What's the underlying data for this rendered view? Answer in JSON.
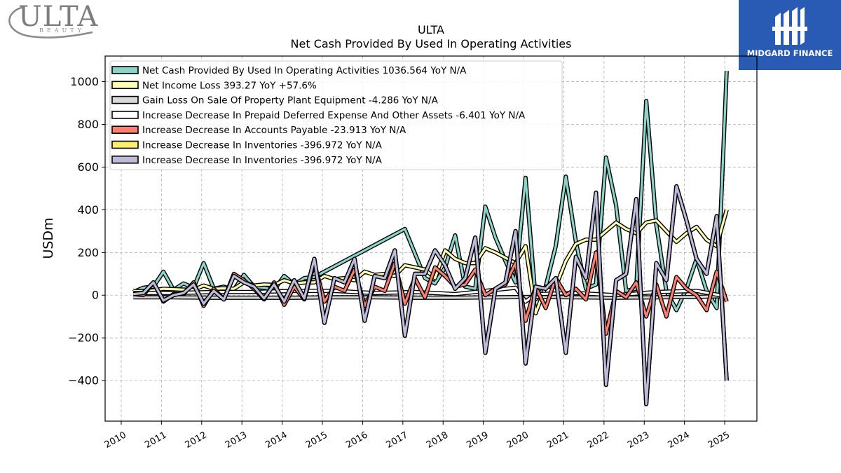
{
  "branding": {
    "left_logo_text": "ULTA",
    "left_logo_subtext": "BEAUTY",
    "right_logo_text": "MIDGARD FINANCE",
    "right_logo_bg": "#2a5bb4"
  },
  "chart_data": {
    "type": "line",
    "title": "ULTA",
    "subtitle": "Net Cash Provided By Used In Operating Activities",
    "xlabel": "",
    "ylabel": "USDm",
    "xlim": [
      2009.6,
      2025.8
    ],
    "ylim": [
      -590,
      1120
    ],
    "yticks": [
      -400,
      -200,
      0,
      200,
      400,
      600,
      800,
      1000
    ],
    "ytick_labels": [
      "−400",
      "−200",
      "0",
      "200",
      "400",
      "600",
      "800",
      "1000"
    ],
    "xticks": [
      2010,
      2011,
      2012,
      2013,
      2014,
      2015,
      2016,
      2017,
      2018,
      2019,
      2020,
      2021,
      2022,
      2023,
      2024,
      2025
    ],
    "grid": true,
    "legend_position": "top-left",
    "series": [
      {
        "name": "Net Cash Provided By Used In Operating Activities",
        "legend": "Net Cash Provided By Used In Operating Activities  1036.564 YoY N/A",
        "color": "#8dd3c7",
        "x": [
          2010.3,
          2010.55,
          2010.8,
          2011.05,
          2011.3,
          2011.55,
          2011.8,
          2012.05,
          2012.3,
          2012.55,
          2012.8,
          2013.05,
          2013.3,
          2013.55,
          2013.8,
          2014.05,
          2014.3,
          2014.55,
          2014.8,
          2017.05,
          2017.55,
          2017.8,
          2018.05,
          2018.3,
          2018.55,
          2018.8,
          2019.05,
          2019.3,
          2019.55,
          2019.8,
          2020.05,
          2020.3,
          2020.55,
          2020.8,
          2021.05,
          2021.3,
          2021.55,
          2021.8,
          2022.05,
          2022.3,
          2022.55,
          2022.8,
          2023.05,
          2023.3,
          2023.55,
          2023.8,
          2024.05,
          2024.3,
          2024.55,
          2024.8,
          2025.05
        ],
        "y": [
          15,
          35,
          40,
          110,
          25,
          55,
          35,
          150,
          30,
          40,
          25,
          95,
          40,
          35,
          25,
          90,
          50,
          80,
          85,
          310,
          80,
          55,
          130,
          280,
          40,
          30,
          415,
          270,
          160,
          60,
          550,
          -20,
          40,
          230,
          555,
          250,
          30,
          50,
          645,
          420,
          20,
          30,
          910,
          330,
          20,
          -70,
          30,
          170,
          20,
          -60,
          1050
        ]
      },
      {
        "name": "Net Income Loss",
        "legend": "Net Income Loss  393.27 YoY +57.6%",
        "color": "#ffffb3",
        "x": [
          2010.3,
          2010.55,
          2010.8,
          2011.05,
          2011.3,
          2011.55,
          2011.8,
          2012.05,
          2012.3,
          2012.55,
          2012.8,
          2013.05,
          2013.3,
          2013.55,
          2013.8,
          2014.05,
          2014.3,
          2014.55,
          2014.8,
          2015.05,
          2015.3,
          2015.55,
          2015.8,
          2016.05,
          2016.3,
          2016.55,
          2016.8,
          2017.05,
          2017.3,
          2017.55,
          2017.8,
          2018.05,
          2018.3,
          2018.55,
          2018.8,
          2019.05,
          2019.3,
          2019.55,
          2019.8,
          2020.05,
          2020.3,
          2020.55,
          2020.8,
          2021.05,
          2021.3,
          2021.55,
          2021.8,
          2022.05,
          2022.3,
          2022.55,
          2022.8,
          2023.05,
          2023.3,
          2023.55,
          2023.8,
          2024.05,
          2024.3,
          2024.55,
          2024.8,
          2025.05
        ],
        "y": [
          20,
          18,
          22,
          30,
          28,
          26,
          25,
          45,
          30,
          32,
          30,
          60,
          45,
          50,
          48,
          70,
          55,
          60,
          60,
          90,
          75,
          80,
          70,
          110,
          95,
          100,
          90,
          140,
          130,
          120,
          80,
          210,
          170,
          150,
          150,
          220,
          200,
          175,
          150,
          230,
          -85,
          40,
          40,
          160,
          240,
          260,
          260,
          300,
          340,
          310,
          290,
          340,
          350,
          300,
          250,
          290,
          320,
          260,
          230,
          400
        ]
      },
      {
        "name": "Gain Loss On Sale Of Property Plant Equipment",
        "legend": "Gain Loss On Sale Of Property Plant Equipment  -4.286 YoY N/A",
        "color": "#d9d9d9",
        "x": [
          2010.3,
          2011.3,
          2012.3,
          2013.3,
          2014.3,
          2015.3,
          2016.3,
          2017.3,
          2018.3,
          2019.3,
          2020.3,
          2021.3,
          2022.3,
          2023.3,
          2024.3,
          2025.05
        ],
        "y": [
          -10,
          -10,
          -12,
          -12,
          -12,
          -10,
          -10,
          -12,
          -12,
          -10,
          -8,
          -10,
          -12,
          -10,
          -8,
          -4
        ]
      },
      {
        "name": "Increase Decrease In Prepaid Deferred Expense And Other Assets",
        "legend": "Increase Decrease In Prepaid Deferred Expense And Other Assets  -6.401 YoY N/A",
        "color": "#ffffff",
        "x": [
          2010.3,
          2011.3,
          2012.3,
          2013.3,
          2014.3,
          2015.3,
          2016.3,
          2017.3,
          2018.3,
          2019.3,
          2019.8,
          2020.05,
          2020.3,
          2021.3,
          2022.3,
          2023.3,
          2024.3,
          2025.05
        ],
        "y": [
          10,
          10,
          15,
          15,
          20,
          20,
          10,
          15,
          5,
          25,
          35,
          -30,
          5,
          10,
          0,
          15,
          20,
          -6
        ]
      },
      {
        "name": "Increase Decrease In Accounts Payable",
        "legend": "Increase Decrease In Accounts Payable  -23.913 YoY N/A",
        "color": "#fb8072",
        "x": [
          2010.3,
          2010.55,
          2010.8,
          2011.05,
          2011.3,
          2011.55,
          2011.8,
          2012.05,
          2012.3,
          2012.55,
          2012.8,
          2013.05,
          2013.3,
          2013.55,
          2013.8,
          2014.05,
          2014.3,
          2014.55,
          2014.8,
          2015.05,
          2015.3,
          2015.55,
          2015.8,
          2016.05,
          2016.3,
          2016.55,
          2016.8,
          2017.05,
          2017.3,
          2017.55,
          2017.8,
          2018.05,
          2018.3,
          2018.55,
          2018.8,
          2019.05,
          2019.3,
          2019.55,
          2019.8,
          2020.05,
          2020.3,
          2020.55,
          2020.8,
          2021.05,
          2021.3,
          2021.55,
          2021.8,
          2022.05,
          2022.3,
          2022.55,
          2022.8,
          2023.05,
          2023.3,
          2023.55,
          2023.8,
          2024.05,
          2024.3,
          2024.55,
          2024.8,
          2025.05
        ],
        "y": [
          5,
          0,
          60,
          -30,
          5,
          5,
          60,
          -50,
          30,
          -20,
          100,
          70,
          30,
          -20,
          60,
          -45,
          40,
          -20,
          150,
          -30,
          40,
          20,
          120,
          -50,
          40,
          20,
          150,
          -40,
          80,
          -10,
          130,
          90,
          40,
          50,
          120,
          0,
          30,
          50,
          150,
          -120,
          40,
          -60,
          80,
          0,
          30,
          -20,
          200,
          -180,
          20,
          -10,
          60,
          -100,
          50,
          -100,
          85,
          30,
          0,
          -70,
          110,
          -30
        ]
      },
      {
        "name": "Increase Decrease In Inventories",
        "legend": "Increase Decrease In Inventories  -396.972 YoY N/A",
        "color": "#ffed6f",
        "x": [
          2010.3,
          2010.55,
          2010.8,
          2011.05,
          2011.3,
          2011.55,
          2011.8,
          2012.05,
          2012.3,
          2012.55,
          2012.8,
          2013.05,
          2013.3,
          2013.55,
          2013.8,
          2014.05,
          2014.3,
          2014.55,
          2014.8,
          2015.05,
          2015.3,
          2015.55,
          2015.8,
          2016.05,
          2016.3,
          2016.55,
          2016.8,
          2017.05,
          2017.3,
          2017.55,
          2017.8,
          2018.05,
          2018.3,
          2018.55,
          2018.8,
          2019.05,
          2019.3,
          2019.55,
          2019.8,
          2020.05,
          2020.3,
          2020.55,
          2020.8,
          2021.05,
          2021.3,
          2021.55,
          2021.8,
          2022.05,
          2022.3,
          2022.55,
          2022.8,
          2023.05,
          2023.3,
          2023.55,
          2023.8,
          2024.05,
          2024.3,
          2024.55,
          2024.8,
          2025.05
        ],
        "y": [
          5,
          10,
          60,
          -25,
          0,
          10,
          50,
          -40,
          20,
          -20,
          90,
          60,
          40,
          -15,
          50,
          -30,
          70,
          -15,
          170,
          -130,
          80,
          60,
          170,
          -120,
          90,
          80,
          210,
          -190,
          100,
          100,
          210,
          140,
          30,
          80,
          270,
          -270,
          30,
          60,
          300,
          -320,
          40,
          30,
          80,
          -270,
          180,
          80,
          480,
          -420,
          70,
          100,
          450,
          -510,
          150,
          70,
          510,
          350,
          170,
          100,
          370,
          -400
        ]
      },
      {
        "name": "Increase Decrease In Inventories",
        "legend": "Increase Decrease In Inventories  -396.972 YoY N/A",
        "color": "#bebada",
        "x": [
          2010.3,
          2010.55,
          2010.8,
          2011.05,
          2011.3,
          2011.55,
          2011.8,
          2012.05,
          2012.3,
          2012.55,
          2012.8,
          2013.05,
          2013.3,
          2013.55,
          2013.8,
          2014.05,
          2014.3,
          2014.55,
          2014.8,
          2015.05,
          2015.3,
          2015.55,
          2015.8,
          2016.05,
          2016.3,
          2016.55,
          2016.8,
          2017.05,
          2017.3,
          2017.55,
          2017.8,
          2018.05,
          2018.3,
          2018.55,
          2018.8,
          2019.05,
          2019.3,
          2019.55,
          2019.8,
          2020.05,
          2020.3,
          2020.55,
          2020.8,
          2021.05,
          2021.3,
          2021.55,
          2021.8,
          2022.05,
          2022.3,
          2022.55,
          2022.8,
          2023.05,
          2023.3,
          2023.55,
          2023.8,
          2024.05,
          2024.3,
          2024.55,
          2024.8,
          2025.05
        ],
        "y": [
          5,
          10,
          60,
          -25,
          0,
          10,
          50,
          -40,
          20,
          -20,
          90,
          60,
          40,
          -15,
          50,
          -30,
          70,
          -15,
          170,
          -130,
          80,
          60,
          170,
          -120,
          90,
          80,
          210,
          -190,
          100,
          100,
          210,
          140,
          30,
          80,
          270,
          -270,
          30,
          60,
          300,
          -320,
          40,
          30,
          80,
          -270,
          180,
          80,
          480,
          -420,
          70,
          100,
          450,
          -510,
          150,
          70,
          510,
          350,
          170,
          100,
          370,
          -400
        ]
      }
    ]
  }
}
